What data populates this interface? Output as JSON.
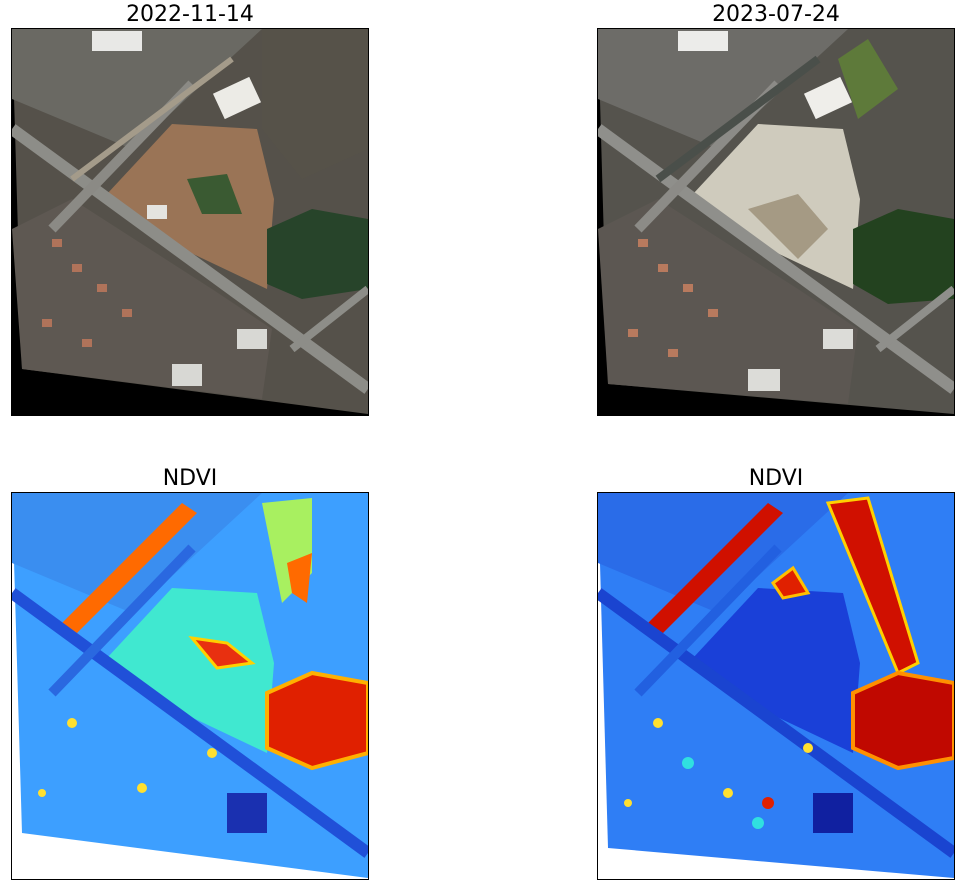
{
  "panels": [
    {
      "title": "2022-11-14",
      "kind": "rgb",
      "date": "2022-11-14"
    },
    {
      "title": "2023-07-24",
      "kind": "rgb",
      "date": "2023-07-24"
    },
    {
      "title": "NDVI",
      "kind": "ndvi",
      "date": "2022-11-14"
    },
    {
      "title": "NDVI",
      "kind": "ndvi",
      "date": "2023-07-24"
    }
  ],
  "colors": {
    "rgb_background": "#000000",
    "field_2022": "#9a7456",
    "field_2023": "#cfcbbd",
    "forest": "#27442a",
    "ndvi_low": "#0a2fd0",
    "ndvi_mid": "#20e0e0",
    "ndvi_high": "#d01000"
  }
}
